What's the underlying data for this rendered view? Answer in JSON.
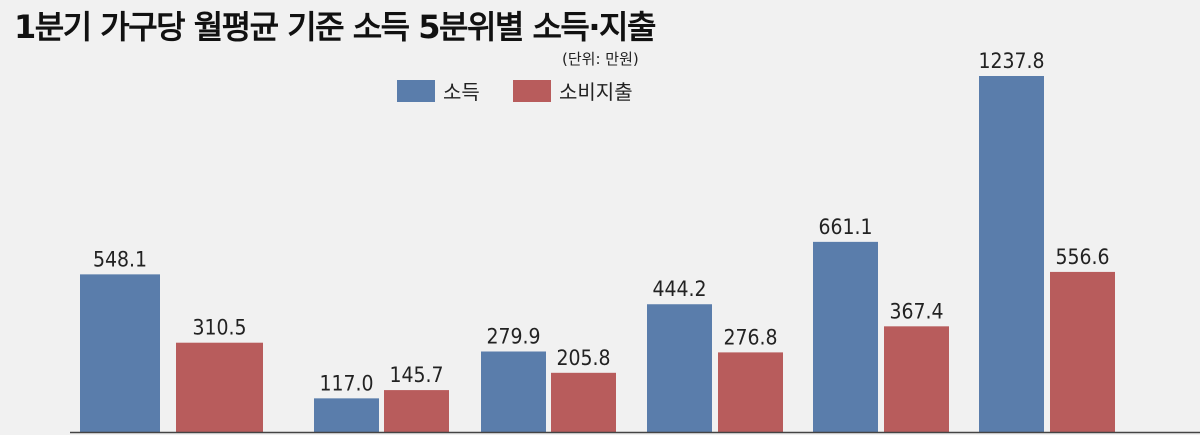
{
  "chart_data": {
    "type": "bar",
    "title": "1분기 가구당 월평균 기준 소득 5분위별 소득·지출",
    "unit": "(단위: 만원)",
    "legend": "top-center",
    "grid": false,
    "ylim": [
      0,
      1300
    ],
    "categories": [
      "",
      "",
      "",
      "",
      "",
      ""
    ],
    "series": [
      {
        "name": "소득",
        "color": "#5a7dab",
        "values": [
          548.1,
          117.0,
          279.9,
          444.2,
          661.1,
          1237.8
        ]
      },
      {
        "name": "소비지출",
        "color": "#b85c5c",
        "values": [
          310.5,
          145.7,
          205.8,
          276.8,
          367.4,
          556.6
        ]
      }
    ]
  }
}
